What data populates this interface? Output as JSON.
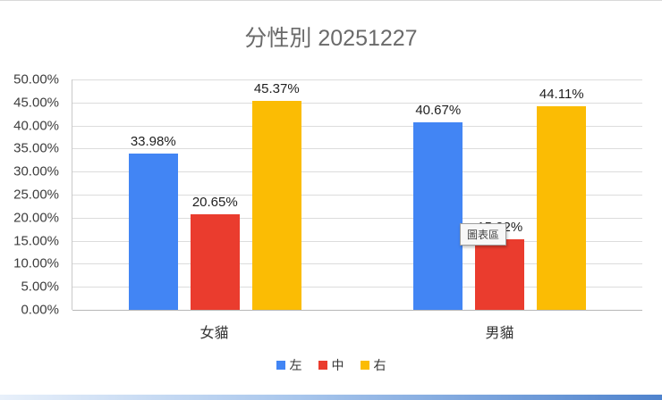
{
  "chart_data": {
    "type": "bar",
    "title": "分性別 20251227",
    "categories": [
      "女貓",
      "男貓"
    ],
    "series": [
      {
        "name": "左",
        "color": "#4285F4",
        "values": [
          33.98,
          40.67
        ]
      },
      {
        "name": "中",
        "color": "#EA3C2E",
        "values": [
          20.65,
          15.22
        ]
      },
      {
        "name": "右",
        "color": "#FBBC04",
        "values": [
          45.37,
          44.11
        ]
      }
    ],
    "data_labels": [
      [
        "33.98%",
        "20.65%",
        "45.37%"
      ],
      [
        "40.67%",
        "15.22%",
        "44.11%"
      ]
    ],
    "y_ticks": [
      "50.00%",
      "45.00%",
      "40.00%",
      "35.00%",
      "30.00%",
      "25.00%",
      "20.00%",
      "15.00%",
      "10.00%",
      "5.00%",
      "0.00%"
    ],
    "ylim": [
      0,
      50
    ],
    "grid": true,
    "legend_position": "bottom"
  },
  "tooltip": {
    "text": "圖表區"
  }
}
